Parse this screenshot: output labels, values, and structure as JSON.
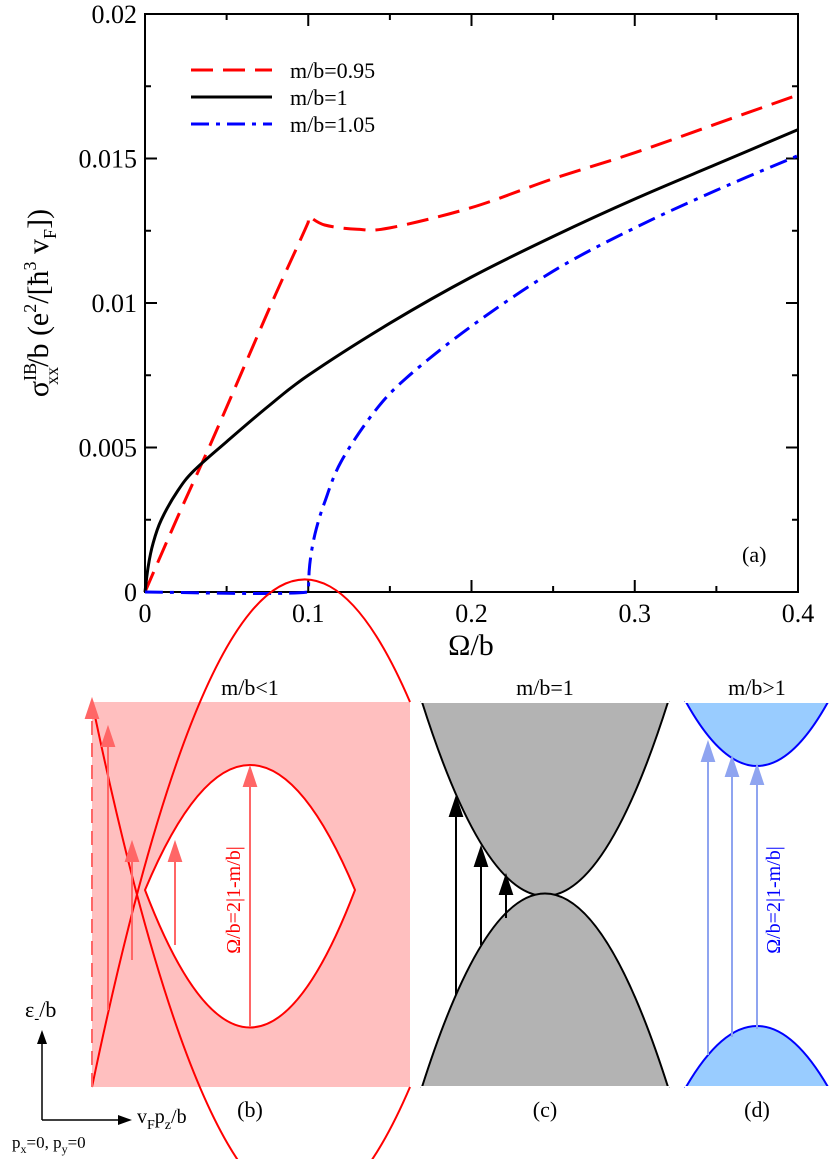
{
  "chart_data": {
    "type": "line",
    "panel_label": "(a)",
    "xlabel": "Ω/b",
    "ylabel": "σxx^IB/b (e^2/[ħ^3 vF])",
    "ylabel_parts": {
      "sigma": "σ",
      "sup": "IB",
      "sub": "xx",
      "rest": "/b (e",
      "e_sup": "2",
      "mid": "/[",
      "hbar": "ħ",
      "h_sup": "3",
      "v": " v",
      "v_sub": "F",
      "close": "])"
    },
    "xlim": [
      0,
      0.4
    ],
    "ylim": [
      0,
      0.02
    ],
    "x_ticks": [
      "0",
      "0.1",
      "0.2",
      "0.3",
      "0.4"
    ],
    "y_ticks": [
      "0",
      "0.005",
      "0.01",
      "0.015",
      "0.02"
    ],
    "legend_position": "top-left",
    "series": [
      {
        "name": "m/b=0.95",
        "color": "#ff0000",
        "dash": "dashed",
        "x": [
          0,
          0.02,
          0.04,
          0.06,
          0.08,
          0.1,
          0.1,
          0.11,
          0.13,
          0.15,
          0.2,
          0.25,
          0.3,
          0.35,
          0.4
        ],
        "y": [
          0,
          0.0026,
          0.0051,
          0.0077,
          0.0103,
          0.0128,
          0.013,
          0.0127,
          0.01255,
          0.0126,
          0.0133,
          0.0143,
          0.0152,
          0.0162,
          0.0172
        ]
      },
      {
        "name": "m/b=1",
        "color": "#000000",
        "dash": "solid",
        "x": [
          0,
          0.002,
          0.005,
          0.01,
          0.02,
          0.03,
          0.05,
          0.075,
          0.1,
          0.15,
          0.2,
          0.25,
          0.3,
          0.35,
          0.4
        ],
        "y": [
          0,
          0.0009,
          0.0017,
          0.0025,
          0.0035,
          0.0042,
          0.0052,
          0.0064,
          0.0075,
          0.0093,
          0.0109,
          0.0123,
          0.0136,
          0.0148,
          0.016
        ]
      },
      {
        "name": "m/b=1.05",
        "color": "#0000ff",
        "dash": "dashdot",
        "x": [
          0,
          0.1,
          0.1005,
          0.102,
          0.105,
          0.11,
          0.12,
          0.14,
          0.16,
          0.2,
          0.25,
          0.3,
          0.35,
          0.4
        ],
        "y": [
          0,
          0,
          0.0007,
          0.0014,
          0.0022,
          0.0031,
          0.0045,
          0.0062,
          0.0074,
          0.0092,
          0.0111,
          0.0126,
          0.0139,
          0.0151
        ]
      }
    ]
  },
  "diagrams": {
    "b": {
      "title": "m/b<1",
      "label": "(b)",
      "arrow_label": "Ω/b=2|1-m/b|",
      "color": "#ff0000",
      "fill": "#ffbfbf"
    },
    "c": {
      "title": "m/b=1",
      "label": "(c)",
      "color": "#000000",
      "fill": "#b3b3b3"
    },
    "d": {
      "title": "m/b>1",
      "label": "(d)",
      "arrow_label": "Ω/b=2|1-m/b|",
      "color": "#0000ff",
      "fill": "#99ccff"
    },
    "axes": {
      "y_label_main": "ε",
      "y_label_sub": "-",
      "y_label_rest": "/b",
      "x_label": "vFpz/b",
      "x_parts": [
        "v",
        "F",
        "p",
        "z",
        "/b"
      ],
      "note_parts": [
        "p",
        "x",
        "=0, p",
        "y",
        "=0"
      ]
    }
  }
}
